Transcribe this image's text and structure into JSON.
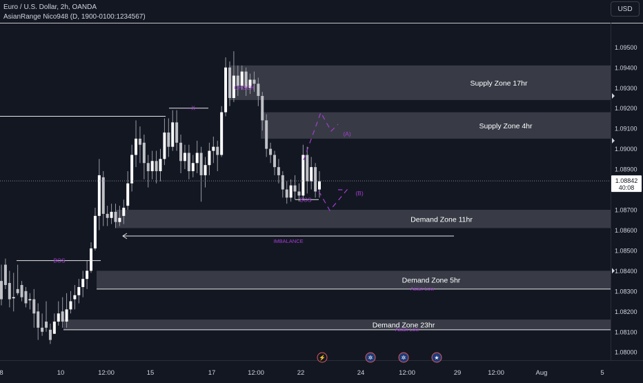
{
  "header": {
    "symbol_line": "Euro / U.S. Dollar, 2h, OANDA",
    "indicator_line": "AsianRange Nico948 (D, 1900-0100:1234567)",
    "currency_button": "USD"
  },
  "price_readout": {
    "price": "1.08842",
    "countdown": "40:08"
  },
  "colors": {
    "background": "#131722",
    "candle": "#ffffff",
    "zone_fill": "#3c3f4a",
    "annotation": "#a63dd4",
    "line": "#e8e8e8"
  },
  "chart_data": {
    "type": "candlestick",
    "y_axis": {
      "range": [
        1.0796,
        1.0962
      ],
      "ticks": [
        "1.08000",
        "1.08100",
        "1.08200",
        "1.08300",
        "1.08400",
        "1.08500",
        "1.08600",
        "1.08700",
        "1.08800",
        "1.08900",
        "1.09000",
        "1.09100",
        "1.09200",
        "1.09300",
        "1.09400",
        "1.09500"
      ]
    },
    "x_axis": {
      "ticks": [
        "8",
        "10",
        "12:00",
        "15",
        "17",
        "12:00",
        "22",
        "24",
        "12:00",
        "29",
        "12:00",
        "Aug",
        "5"
      ]
    },
    "zones": [
      {
        "label": "Supply Zone 17hr",
        "top": 1.0941,
        "bottom": 1.0924
      },
      {
        "label": "Supply Zone 4hr",
        "top": 1.0918,
        "bottom": 1.0905
      },
      {
        "label": "Demand Zone 11hr",
        "top": 1.087,
        "bottom": 1.0861
      },
      {
        "label": "Demand Zone 5hr",
        "top": 1.084,
        "bottom": 1.0831
      },
      {
        "label": "Demand Zone 23hr",
        "top": 1.0816,
        "bottom": 1.0811
      }
    ],
    "asian_lows": [
      {
        "label": "Asian Low",
        "price": 1.0831
      },
      {
        "label": "Asian Low",
        "price": 1.0811
      }
    ],
    "annotations": {
      "choch": "CHOCH",
      "bos_left": "BOS",
      "bos_right": "BOS",
      "imbalance": "IMBALANCE",
      "x_mark": "---X---",
      "a": "(A)",
      "b": "(B)"
    },
    "last_price": 1.08842,
    "candles": [
      [
        1.0835,
        1.0843,
        1.0826,
        1.0823
      ],
      [
        1.0843,
        1.0846,
        1.0833,
        1.0831
      ],
      [
        1.0834,
        1.084,
        1.0826,
        1.0822
      ],
      [
        1.0827,
        1.0839,
        1.0827,
        1.082
      ],
      [
        1.0831,
        1.0843,
        1.0829,
        1.0828
      ],
      [
        1.0833,
        1.0835,
        1.0827,
        1.0825
      ],
      [
        1.083,
        1.0832,
        1.0824,
        1.0822
      ],
      [
        1.0826,
        1.0829,
        1.0826,
        1.0821
      ],
      [
        1.0826,
        1.0831,
        1.0819,
        1.0812
      ],
      [
        1.082,
        1.0824,
        1.0812,
        1.0806
      ],
      [
        1.0812,
        1.0819,
        1.081,
        1.0808
      ],
      [
        1.0815,
        1.0825,
        1.0812,
        1.081
      ],
      [
        1.0811,
        1.0814,
        1.0806,
        1.0804
      ],
      [
        1.0809,
        1.0819,
        1.0815,
        1.0809
      ],
      [
        1.0815,
        1.0825,
        1.0819,
        1.0813
      ],
      [
        1.082,
        1.0827,
        1.0815,
        1.0812
      ],
      [
        1.0815,
        1.0829,
        1.0821,
        1.0812
      ],
      [
        1.0821,
        1.083,
        1.0825,
        1.0819
      ],
      [
        1.0826,
        1.0833,
        1.0828,
        1.0821
      ],
      [
        1.0828,
        1.0836,
        1.0832,
        1.0824
      ],
      [
        1.0832,
        1.084,
        1.0836,
        1.0827
      ],
      [
        1.0836,
        1.0845,
        1.084,
        1.0831
      ],
      [
        1.084,
        1.0854,
        1.0851,
        1.0839
      ],
      [
        1.0851,
        1.0871,
        1.0867,
        1.085
      ],
      [
        1.0867,
        1.0895,
        1.0887,
        1.086
      ],
      [
        1.0886,
        1.0889,
        1.0868,
        1.0862
      ],
      [
        1.0868,
        1.0872,
        1.0866,
        1.0862
      ],
      [
        1.0866,
        1.0873,
        1.0869,
        1.0863
      ],
      [
        1.0869,
        1.0873,
        1.0864,
        1.0861
      ],
      [
        1.0864,
        1.0872,
        1.0866,
        1.0862
      ],
      [
        1.0867,
        1.0875,
        1.0871,
        1.0863
      ],
      [
        1.0872,
        1.0889,
        1.0883,
        1.087
      ],
      [
        1.0883,
        1.0902,
        1.0897,
        1.0879
      ],
      [
        1.0897,
        1.0914,
        1.0905,
        1.0891
      ],
      [
        1.0905,
        1.0911,
        1.0902,
        1.0893
      ],
      [
        1.0903,
        1.0907,
        1.0893,
        1.0885
      ],
      [
        1.0893,
        1.0897,
        1.0889,
        1.0881
      ],
      [
        1.0889,
        1.0899,
        1.0894,
        1.0885
      ],
      [
        1.0894,
        1.0899,
        1.0889,
        1.0883
      ],
      [
        1.0889,
        1.09,
        1.0895,
        1.0884
      ],
      [
        1.0895,
        1.0915,
        1.0908,
        1.0892
      ],
      [
        1.0908,
        1.0915,
        1.0901,
        1.0896
      ],
      [
        1.0901,
        1.0919,
        1.0913,
        1.0899
      ],
      [
        1.0913,
        1.0919,
        1.0903,
        1.0899
      ],
      [
        1.0903,
        1.0907,
        1.0894,
        1.0888
      ],
      [
        1.0894,
        1.0902,
        1.0898,
        1.089
      ],
      [
        1.0898,
        1.0902,
        1.0889,
        1.0885
      ],
      [
        1.0889,
        1.0897,
        1.0893,
        1.0886
      ],
      [
        1.0893,
        1.0904,
        1.0898,
        1.0888
      ],
      [
        1.0898,
        1.0901,
        1.0887,
        1.0874
      ],
      [
        1.0887,
        1.0896,
        1.0892,
        1.0881
      ],
      [
        1.0892,
        1.0903,
        1.0899,
        1.0887
      ],
      [
        1.0899,
        1.0906,
        1.0901,
        1.0893
      ],
      [
        1.0901,
        1.0904,
        1.0897,
        1.0889
      ],
      [
        1.0897,
        1.0921,
        1.0918,
        1.0896
      ],
      [
        1.0918,
        1.0945,
        1.094,
        1.0916
      ],
      [
        1.094,
        1.0943,
        1.0925,
        1.0921
      ],
      [
        1.0925,
        1.0948,
        1.0936,
        1.0923
      ],
      [
        1.0936,
        1.0941,
        1.0931,
        1.0926
      ],
      [
        1.0931,
        1.0941,
        1.0938,
        1.0929
      ],
      [
        1.0938,
        1.094,
        1.093,
        1.0926
      ],
      [
        1.093,
        1.0937,
        1.0934,
        1.0927
      ],
      [
        1.0934,
        1.0938,
        1.0932,
        1.0928
      ],
      [
        1.0932,
        1.0935,
        1.0926,
        1.0921
      ],
      [
        1.0926,
        1.0928,
        1.0914,
        1.0909
      ],
      [
        1.0914,
        1.0917,
        1.09,
        1.0896
      ],
      [
        1.09,
        1.0903,
        1.0897,
        1.0893
      ],
      [
        1.0897,
        1.0899,
        1.0891,
        1.0887
      ],
      [
        1.0891,
        1.0895,
        1.0887,
        1.0883
      ],
      [
        1.0887,
        1.0889,
        1.088,
        1.0876
      ],
      [
        1.088,
        1.0884,
        1.0876,
        1.0873
      ],
      [
        1.0876,
        1.0885,
        1.0882,
        1.0874
      ],
      [
        1.0882,
        1.0887,
        1.0879,
        1.0875
      ],
      [
        1.0879,
        1.0883,
        1.0877,
        1.0874
      ],
      [
        1.0877,
        1.0902,
        1.0897,
        1.0875
      ],
      [
        1.0897,
        1.0901,
        1.0884,
        1.0878
      ],
      [
        1.0884,
        1.0896,
        1.0891,
        1.088
      ],
      [
        1.0891,
        1.0893,
        1.0879,
        1.0876
      ],
      [
        1.088,
        1.0889,
        1.0884,
        1.0876
      ]
    ]
  }
}
